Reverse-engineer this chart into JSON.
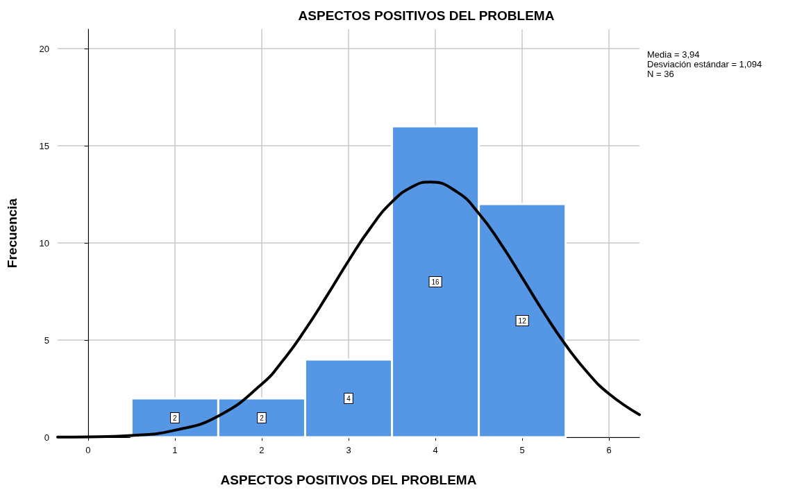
{
  "chart_data": {
    "type": "histogram",
    "title": "ASPECTOS POSITIVOS DEL PROBLEMA",
    "xlabel": "ASPECTOS POSITIVOS DEL PROBLEMA",
    "ylabel": "Frecuencia",
    "bins": [
      0.5,
      1.5,
      2.5,
      3.5,
      4.5,
      5.5
    ],
    "values": [
      2,
      2,
      4,
      16,
      12
    ],
    "color": "#5596e5",
    "value_labels": [
      "2",
      "2",
      "4",
      "16",
      "12"
    ],
    "series": [
      {
        "type": "line",
        "color": "#000000",
        "x": [
          -0.35,
          0,
          0.5,
          1,
          1.5,
          2,
          2.25,
          2.5,
          2.75,
          3,
          3.25,
          3.5,
          3.75,
          3.94,
          4.25,
          4.5,
          4.75,
          5,
          5.25,
          5.5,
          5.75,
          6,
          6.35
        ],
        "values": [
          0.01,
          0.02,
          0.09,
          0.36,
          1.09,
          2.73,
          3.98,
          5.53,
          7.27,
          9.08,
          10.76,
          12.11,
          12.93,
          13.13,
          12.62,
          11.52,
          9.98,
          8.21,
          6.41,
          4.75,
          3.34,
          2.23,
          1.16
        ]
      }
    ],
    "xlim": [
      -0.35,
      6.35
    ],
    "ylim": [
      0,
      21
    ],
    "xticks": [
      0,
      1,
      2,
      3,
      4,
      5,
      6
    ],
    "yticks": [
      0,
      5,
      10,
      15,
      20
    ],
    "grid": true,
    "marker": "none",
    "line_style": "solid",
    "annotations": [
      "Media = 3,94",
      "Desviación estándar = 1,094",
      "N = 36"
    ]
  }
}
